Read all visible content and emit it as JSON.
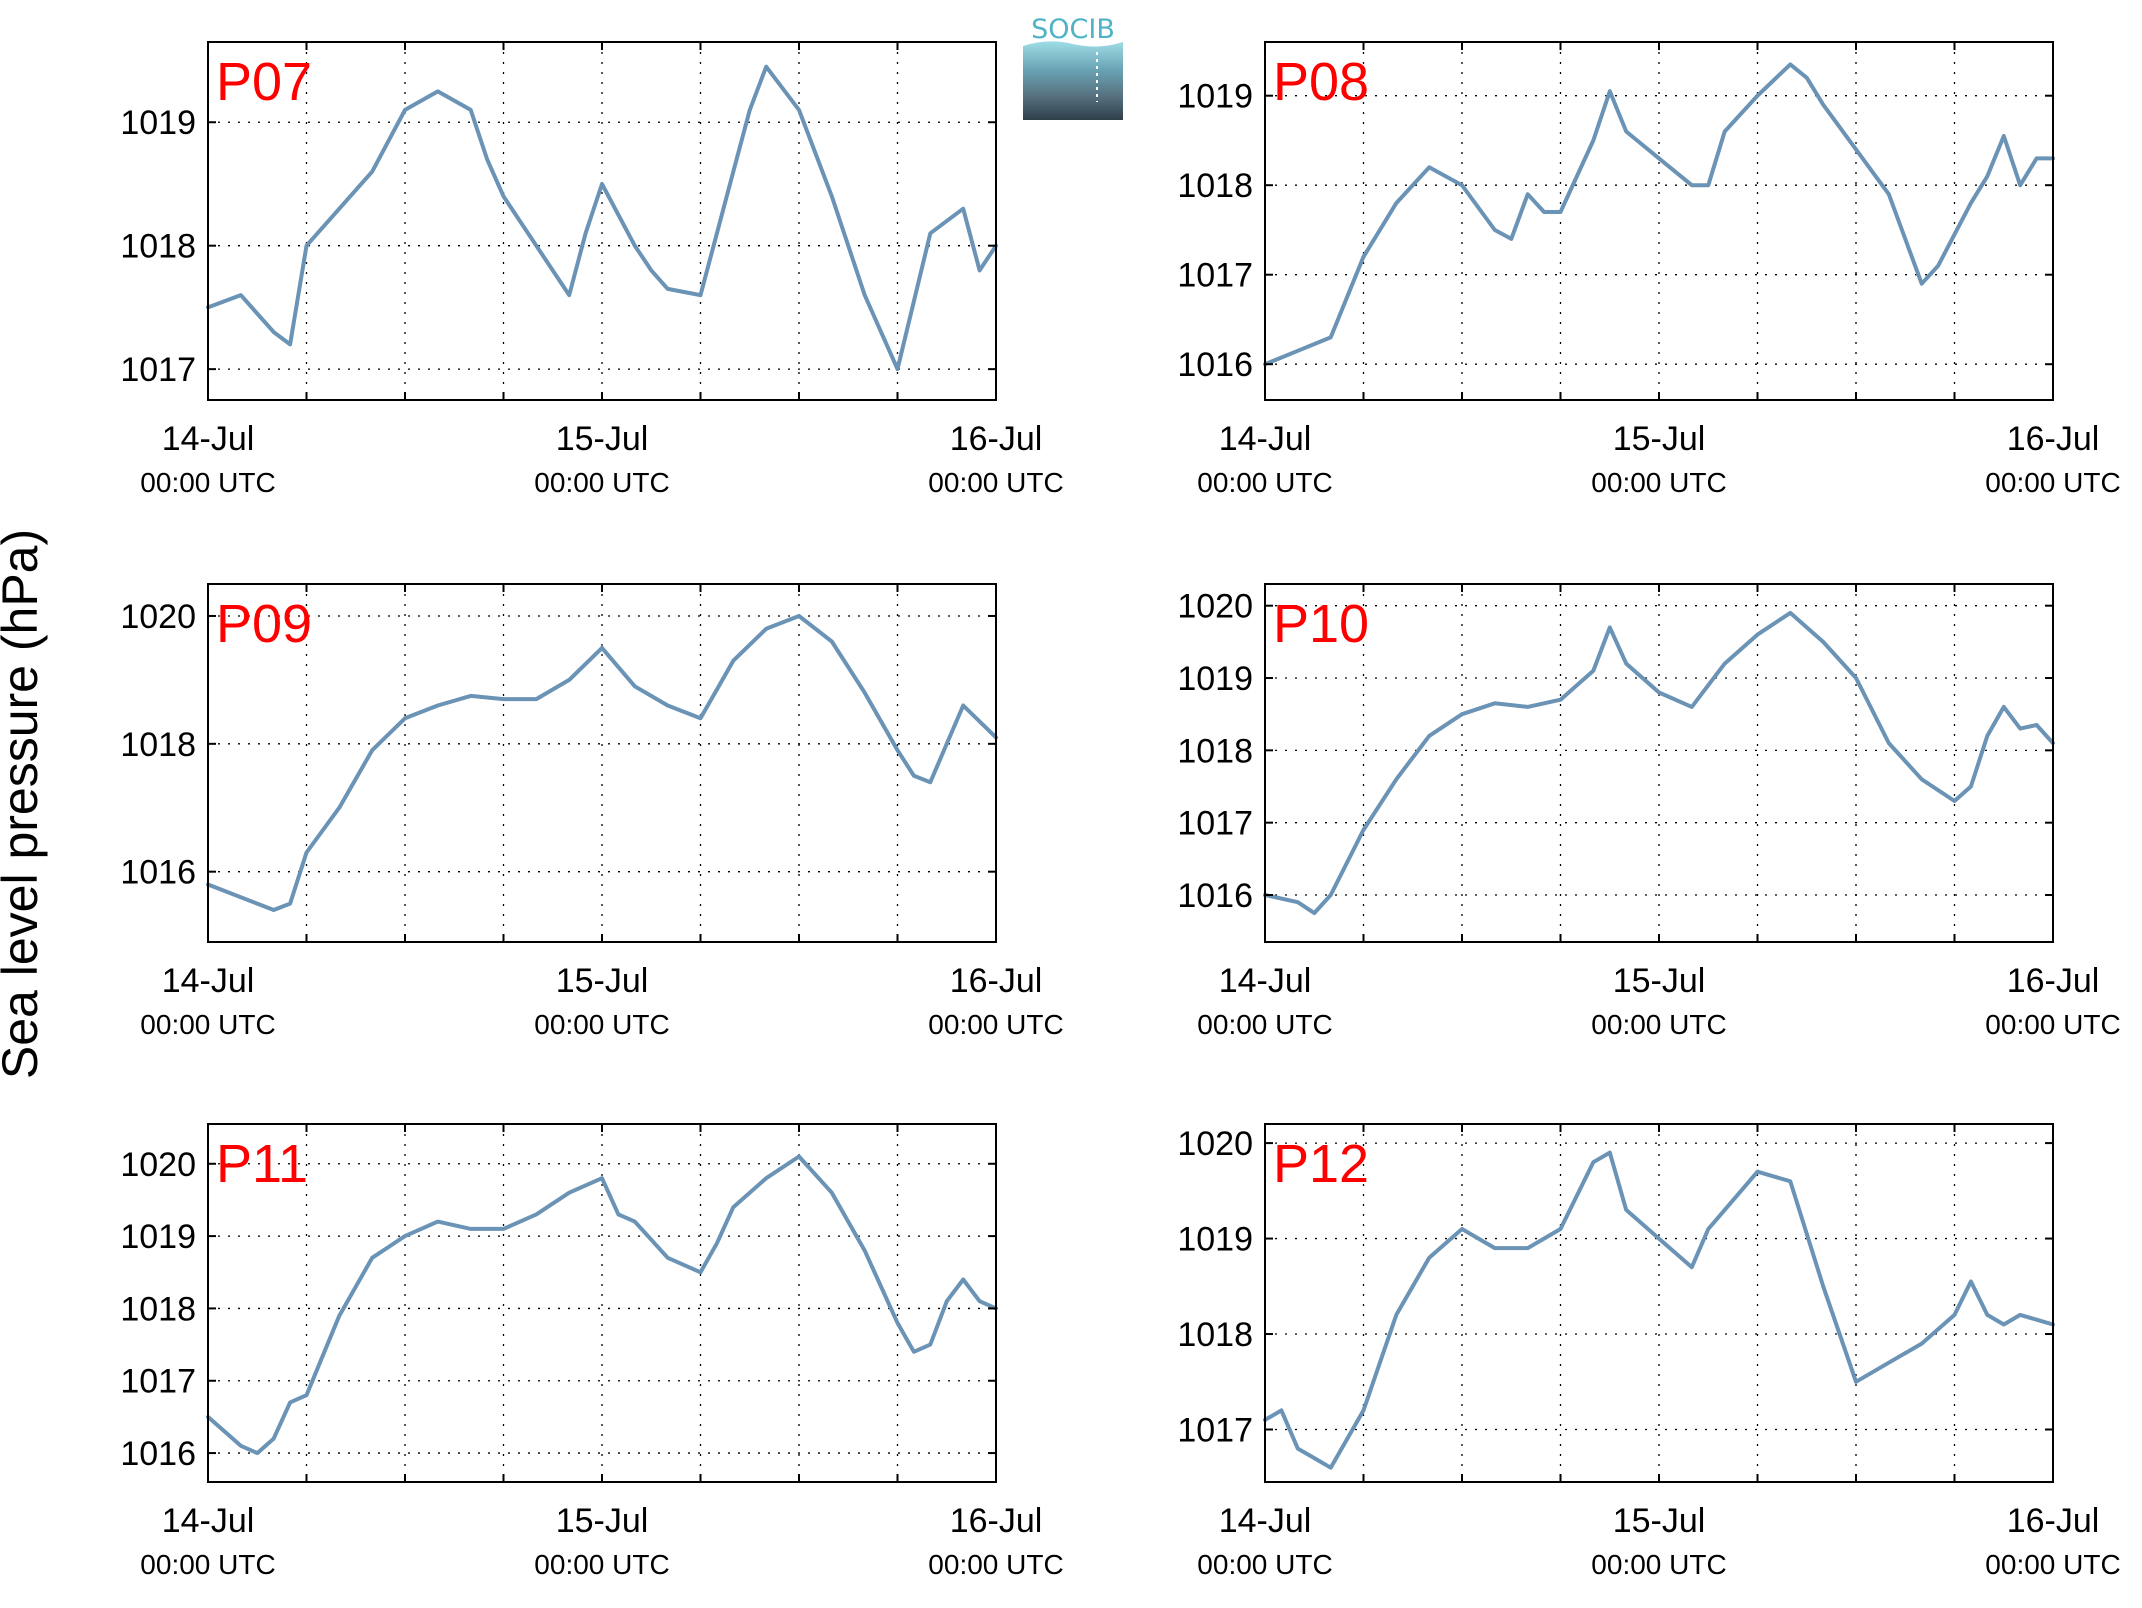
{
  "figure": {
    "ylabel": "Sea level pressure (hPa)",
    "logo_text": "SOCIB",
    "line_color": "#6a93b5",
    "label_color": "#ff0000"
  },
  "chart_data": [
    {
      "type": "line",
      "title": "P07",
      "ylim": [
        1016.75,
        1019.65
      ],
      "yticks": [
        1017,
        1018,
        1019
      ],
      "grid": true,
      "x_ticks": [
        {
          "line1": "14-Jul",
          "line2": "00:00 UTC"
        },
        {
          "line1": "15-Jul",
          "line2": "00:00 UTC"
        },
        {
          "line1": "16-Jul",
          "line2": "00:00 UTC"
        }
      ],
      "series": [
        {
          "x": [
            0,
            2,
            4,
            5,
            6,
            8,
            10,
            12,
            14,
            16,
            17,
            18,
            20,
            22,
            23,
            24,
            26,
            27,
            28,
            30,
            32,
            33,
            34,
            36,
            38,
            40,
            42,
            44,
            46,
            47,
            48
          ],
          "y": [
            1017.5,
            1017.6,
            1017.3,
            1017.2,
            1018.0,
            1018.3,
            1018.6,
            1019.1,
            1019.25,
            1019.1,
            1018.7,
            1018.4,
            1018.0,
            1017.6,
            1018.1,
            1018.5,
            1018.0,
            1017.8,
            1017.65,
            1017.6,
            1018.6,
            1019.1,
            1019.45,
            1019.1,
            1018.4,
            1017.6,
            1017.0,
            1018.1,
            1018.3,
            1017.8,
            1018.0
          ]
        }
      ]
    },
    {
      "type": "line",
      "title": "P08",
      "ylim": [
        1015.6,
        1019.6
      ],
      "yticks": [
        1016,
        1017,
        1018,
        1019
      ],
      "grid": true,
      "x_ticks": [
        {
          "line1": "14-Jul",
          "line2": "00:00 UTC"
        },
        {
          "line1": "15-Jul",
          "line2": "00:00 UTC"
        },
        {
          "line1": "16-Jul",
          "line2": "00:00 UTC"
        }
      ],
      "series": [
        {
          "x": [
            0,
            2,
            4,
            6,
            8,
            10,
            12,
            14,
            15,
            16,
            17,
            18,
            20,
            21,
            22,
            24,
            26,
            27,
            28,
            30,
            32,
            33,
            34,
            36,
            38,
            40,
            41,
            43,
            44,
            45,
            46,
            47,
            48
          ],
          "y": [
            1016.0,
            1016.15,
            1016.3,
            1017.2,
            1017.8,
            1018.2,
            1018.0,
            1017.5,
            1017.4,
            1017.9,
            1017.7,
            1017.7,
            1018.5,
            1019.05,
            1018.6,
            1018.3,
            1018.0,
            1018.0,
            1018.6,
            1019.0,
            1019.35,
            1019.2,
            1018.9,
            1018.4,
            1017.9,
            1016.9,
            1017.1,
            1017.8,
            1018.1,
            1018.55,
            1018.0,
            1018.3,
            1018.3
          ]
        }
      ]
    },
    {
      "type": "line",
      "title": "P09",
      "ylim": [
        1014.9,
        1020.5
      ],
      "yticks": [
        1016,
        1018,
        1020
      ],
      "grid": true,
      "x_ticks": [
        {
          "line1": "14-Jul",
          "line2": "00:00 UTC"
        },
        {
          "line1": "15-Jul",
          "line2": "00:00 UTC"
        },
        {
          "line1": "16-Jul",
          "line2": "00:00 UTC"
        }
      ],
      "series": [
        {
          "x": [
            0,
            2,
            4,
            5,
            6,
            8,
            10,
            12,
            14,
            16,
            18,
            20,
            22,
            24,
            26,
            28,
            30,
            32,
            34,
            36,
            38,
            40,
            42,
            43,
            44,
            46,
            48
          ],
          "y": [
            1015.8,
            1015.6,
            1015.4,
            1015.5,
            1016.3,
            1017.0,
            1017.9,
            1018.4,
            1018.6,
            1018.75,
            1018.7,
            1018.7,
            1019.0,
            1019.5,
            1018.9,
            1018.6,
            1018.4,
            1019.3,
            1019.8,
            1020.0,
            1019.6,
            1018.8,
            1017.9,
            1017.5,
            1017.4,
            1018.6,
            1018.1
          ]
        }
      ]
    },
    {
      "type": "line",
      "title": "P10",
      "ylim": [
        1015.35,
        1020.3
      ],
      "yticks": [
        1016,
        1017,
        1018,
        1019,
        1020
      ],
      "grid": true,
      "x_ticks": [
        {
          "line1": "14-Jul",
          "line2": "00:00 UTC"
        },
        {
          "line1": "15-Jul",
          "line2": "00:00 UTC"
        },
        {
          "line1": "16-Jul",
          "line2": "00:00 UTC"
        }
      ],
      "series": [
        {
          "x": [
            0,
            2,
            3,
            4,
            6,
            8,
            10,
            12,
            14,
            16,
            18,
            20,
            21,
            22,
            24,
            26,
            28,
            30,
            32,
            34,
            36,
            38,
            40,
            42,
            43,
            44,
            45,
            46,
            47,
            48
          ],
          "y": [
            1016.0,
            1015.9,
            1015.75,
            1016.0,
            1016.9,
            1017.6,
            1018.2,
            1018.5,
            1018.65,
            1018.6,
            1018.7,
            1019.1,
            1019.7,
            1019.2,
            1018.8,
            1018.6,
            1019.2,
            1019.6,
            1019.9,
            1019.5,
            1019.0,
            1018.1,
            1017.6,
            1017.3,
            1017.5,
            1018.2,
            1018.6,
            1018.3,
            1018.35,
            1018.1
          ]
        }
      ]
    },
    {
      "type": "line",
      "title": "P11",
      "ylim": [
        1015.6,
        1020.55
      ],
      "yticks": [
        1016,
        1017,
        1018,
        1019,
        1020
      ],
      "grid": true,
      "x_ticks": [
        {
          "line1": "14-Jul",
          "line2": "00:00 UTC"
        },
        {
          "line1": "15-Jul",
          "line2": "00:00 UTC"
        },
        {
          "line1": "16-Jul",
          "line2": "00:00 UTC"
        }
      ],
      "series": [
        {
          "x": [
            0,
            2,
            3,
            4,
            5,
            6,
            8,
            10,
            12,
            14,
            16,
            18,
            20,
            22,
            24,
            25,
            26,
            28,
            30,
            31,
            32,
            34,
            36,
            38,
            40,
            42,
            43,
            44,
            45,
            46,
            47,
            48
          ],
          "y": [
            1016.5,
            1016.1,
            1016.0,
            1016.2,
            1016.7,
            1016.8,
            1017.9,
            1018.7,
            1019.0,
            1019.2,
            1019.1,
            1019.1,
            1019.3,
            1019.6,
            1019.8,
            1019.3,
            1019.2,
            1018.7,
            1018.5,
            1018.9,
            1019.4,
            1019.8,
            1020.1,
            1019.6,
            1018.8,
            1017.8,
            1017.4,
            1017.5,
            1018.1,
            1018.4,
            1018.1,
            1018.0
          ]
        }
      ]
    },
    {
      "type": "line",
      "title": "P12",
      "ylim": [
        1016.45,
        1020.2
      ],
      "yticks": [
        1017,
        1018,
        1019,
        1020
      ],
      "grid": true,
      "x_ticks": [
        {
          "line1": "14-Jul",
          "line2": "00:00 UTC"
        },
        {
          "line1": "15-Jul",
          "line2": "00:00 UTC"
        },
        {
          "line1": "16-Jul",
          "line2": "00:00 UTC"
        }
      ],
      "series": [
        {
          "x": [
            0,
            1,
            2,
            3,
            4,
            6,
            8,
            10,
            12,
            14,
            16,
            18,
            20,
            21,
            22,
            24,
            26,
            27,
            28,
            30,
            32,
            34,
            36,
            38,
            40,
            42,
            43,
            44,
            45,
            46,
            47,
            48
          ],
          "y": [
            1017.1,
            1017.2,
            1016.8,
            1016.7,
            1016.6,
            1017.2,
            1018.2,
            1018.8,
            1019.1,
            1018.9,
            1018.9,
            1019.1,
            1019.8,
            1019.9,
            1019.3,
            1019.0,
            1018.7,
            1019.1,
            1019.3,
            1019.7,
            1019.6,
            1018.5,
            1017.5,
            1017.7,
            1017.9,
            1018.2,
            1018.55,
            1018.2,
            1018.1,
            1018.2,
            1018.15,
            1018.1
          ]
        }
      ]
    }
  ]
}
